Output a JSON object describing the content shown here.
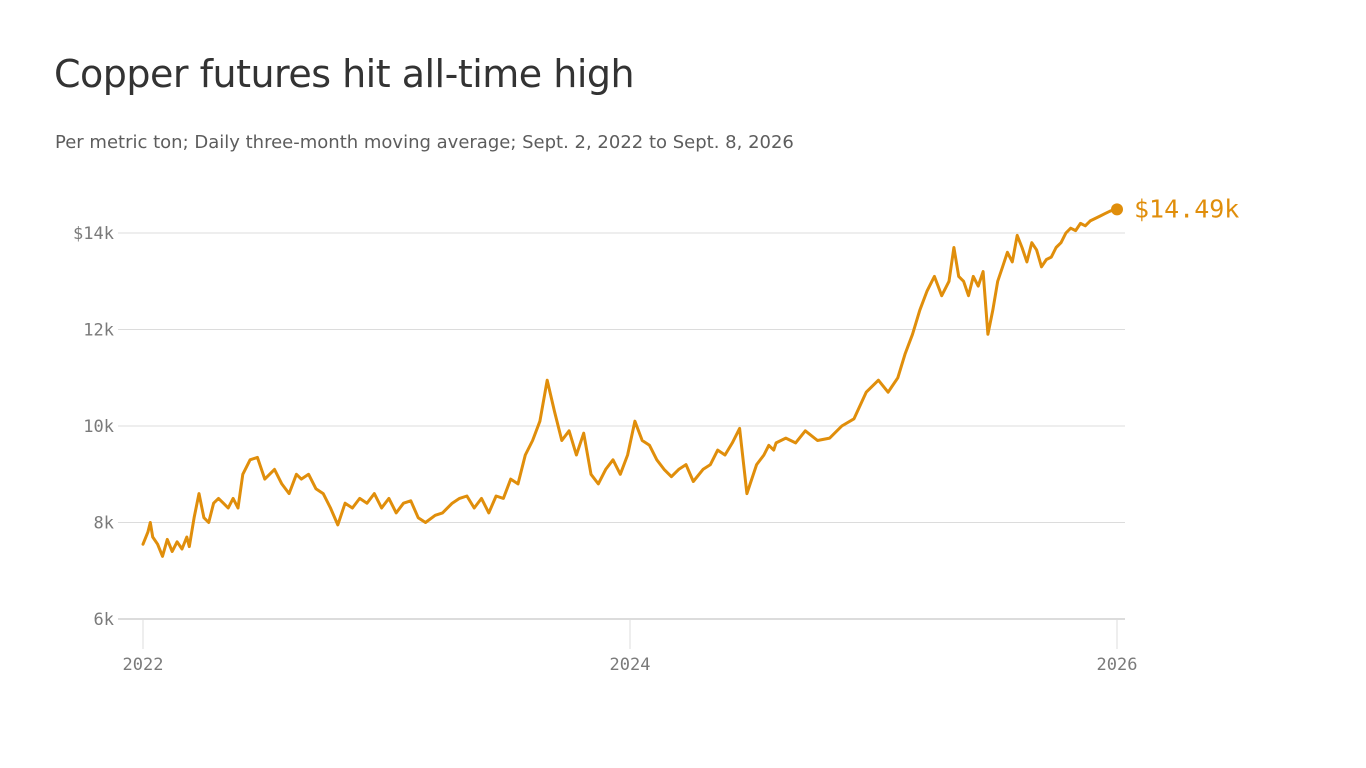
{
  "title": "Copper futures hit all-time high",
  "subtitle": "Per metric ton; Daily three-month moving average; Sept. 2, 2022 to Sept. 8, 2026",
  "colors": {
    "line": "#e08e0b",
    "grid": "#dcdcdc",
    "axis": "#d0d0d0",
    "text": "#333333",
    "muted": "#7a7a7a"
  },
  "chart_data": {
    "type": "line",
    "title": "Copper futures hit all-time high",
    "subtitle": "Per metric ton; Daily three-month moving average; Sept. 2, 2022 to Sept. 8, 2026",
    "xlabel": "",
    "ylabel": "",
    "grid": true,
    "ylim": [
      6000,
      14000
    ],
    "xlim": [
      2022.0,
      2026.0
    ],
    "y_ticks": [
      {
        "value": 14000,
        "label": "$14k"
      },
      {
        "value": 12000,
        "label": "12k"
      },
      {
        "value": 10000,
        "label": "10k"
      },
      {
        "value": 8000,
        "label": "8k"
      },
      {
        "value": 6000,
        "label": "6k"
      }
    ],
    "x_ticks": [
      {
        "value": 2022,
        "label": "2022"
      },
      {
        "value": 2024,
        "label": "2024"
      },
      {
        "value": 2026,
        "label": "2026"
      }
    ],
    "end_label": "$14.49k",
    "end_point": [
      2026.0,
      14490
    ],
    "series": [
      {
        "x": [
          2022.0,
          2022.02,
          2022.03,
          2022.04,
          2022.06,
          2022.08,
          2022.1,
          2022.12,
          2022.14,
          2022.16,
          2022.18,
          2022.19,
          2022.21,
          2022.23,
          2022.25,
          2022.27,
          2022.29,
          2022.31,
          2022.33,
          2022.35,
          2022.37,
          2022.39,
          2022.41,
          2022.44,
          2022.47,
          2022.5,
          2022.54,
          2022.57,
          2022.6,
          2022.63,
          2022.65,
          2022.68,
          2022.71,
          2022.74,
          2022.77,
          2022.8,
          2022.83,
          2022.86,
          2022.89,
          2022.92,
          2022.95,
          2022.98,
          2023.01,
          2023.04,
          2023.07,
          2023.1,
          2023.13,
          2023.16,
          2023.2,
          2023.23,
          2023.27,
          2023.3,
          2023.33,
          2023.36,
          2023.39,
          2023.42,
          2023.45,
          2023.48,
          2023.51,
          2023.54,
          2023.57,
          2023.6,
          2023.63,
          2023.66,
          2023.69,
          2023.72,
          2023.75,
          2023.78,
          2023.81,
          2023.84,
          2023.87,
          2023.9,
          2023.93,
          2023.96,
          2023.99,
          2024.02,
          2024.05,
          2024.08,
          2024.11,
          2024.14,
          2024.17,
          2024.2,
          2024.23,
          2024.26,
          2024.3,
          2024.33,
          2024.36,
          2024.39,
          2024.42,
          2024.45,
          2024.48,
          2024.52,
          2024.55,
          2024.57,
          2024.59,
          2024.6,
          2024.64,
          2024.68,
          2024.72,
          2024.77,
          2024.82,
          2024.87,
          2024.92,
          2024.97,
          2025.02,
          2025.06,
          2025.1,
          2025.13,
          2025.16,
          2025.19,
          2025.22,
          2025.25,
          2025.28,
          2025.31,
          2025.33,
          2025.35,
          2025.37,
          2025.39,
          2025.41,
          2025.43,
          2025.45,
          2025.47,
          2025.49,
          2025.51,
          2025.53,
          2025.55,
          2025.57,
          2025.59,
          2025.61,
          2025.63,
          2025.65,
          2025.67,
          2025.69,
          2025.71,
          2025.73,
          2025.75,
          2025.77,
          2025.79,
          2025.81,
          2025.83,
          2025.85,
          2025.87,
          2025.89,
          2025.91,
          2025.93,
          2025.95,
          2025.97,
          2025.99
        ],
        "values": [
          7550,
          7800,
          8000,
          7700,
          7550,
          7300,
          7650,
          7400,
          7600,
          7450,
          7700,
          7500,
          8100,
          8600,
          8100,
          8000,
          8400,
          8500,
          8400,
          8300,
          8500,
          8300,
          9000,
          9300,
          9350,
          8900,
          9100,
          8800,
          8600,
          9000,
          8900,
          9000,
          8700,
          8600,
          8300,
          7950,
          8400,
          8300,
          8500,
          8400,
          8600,
          8300,
          8500,
          8200,
          8400,
          8450,
          8100,
          8000,
          8150,
          8200,
          8400,
          8500,
          8550,
          8300,
          8500,
          8200,
          8550,
          8500,
          8900,
          8800,
          9400,
          9700,
          10100,
          10950,
          10300,
          9700,
          9900,
          9400,
          9850,
          9000,
          8800,
          9100,
          9300,
          9000,
          9400,
          10100,
          9700,
          9600,
          9300,
          9100,
          8950,
          9100,
          9200,
          8850,
          9100,
          9200,
          9500,
          9400,
          9650,
          9950,
          8600,
          9200,
          9400,
          9600,
          9500,
          9650,
          9750,
          9650,
          9900,
          9700,
          9750,
          10000,
          10150,
          10700,
          10950,
          10700,
          11000,
          11500,
          11900,
          12400,
          12800,
          13100,
          12700,
          13000,
          13700,
          13100,
          13000,
          12700,
          13100,
          12900,
          13200,
          11900,
          12400,
          13000,
          13300,
          13600,
          13400,
          13950,
          13700,
          13400,
          13800,
          13650,
          13300,
          13450,
          13500,
          13700,
          13800,
          14000,
          14100,
          14050,
          14200,
          14150,
          14250,
          14300,
          14350,
          14400,
          14450,
          14490
        ]
      }
    ]
  }
}
